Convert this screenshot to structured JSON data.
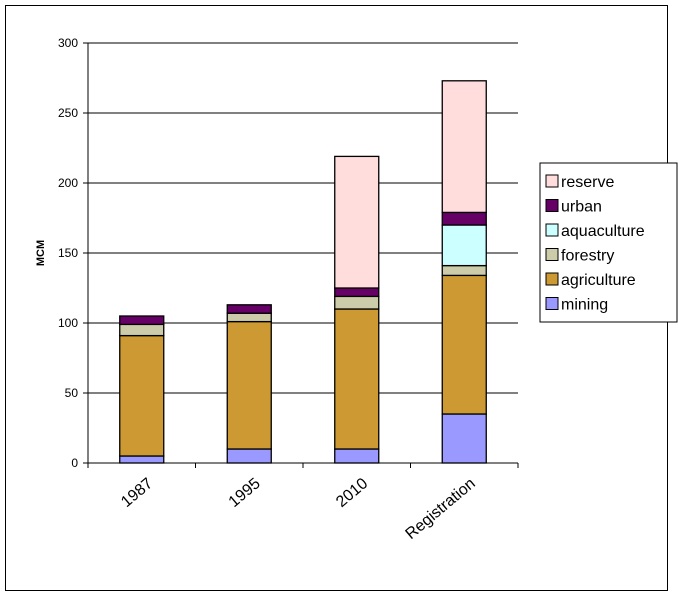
{
  "chart_data": {
    "type": "bar",
    "stacked": true,
    "title": "",
    "xlabel": "",
    "ylabel": "MCM",
    "ylim": [
      0,
      300
    ],
    "yticks": [
      0,
      50,
      100,
      150,
      200,
      250,
      300
    ],
    "grid": true,
    "legend_position": "right",
    "categories": [
      "1987",
      "1995",
      "2010",
      "Registration"
    ],
    "series": [
      {
        "name": "mining",
        "color": "#9999ff",
        "values": [
          5,
          10,
          10,
          35
        ]
      },
      {
        "name": "agriculture",
        "color": "#cc9933",
        "values": [
          86,
          91,
          100,
          99
        ]
      },
      {
        "name": "forestry",
        "color": "#ccccaa",
        "values": [
          8,
          6,
          9,
          7
        ]
      },
      {
        "name": "aquaculture",
        "color": "#ccffff",
        "values": [
          0,
          0,
          0,
          29
        ]
      },
      {
        "name": "urban",
        "color": "#660066",
        "values": [
          6,
          6,
          6,
          9
        ]
      },
      {
        "name": "reserve",
        "color": "#ffdddd",
        "values": [
          0,
          0,
          94,
          94
        ]
      }
    ]
  }
}
